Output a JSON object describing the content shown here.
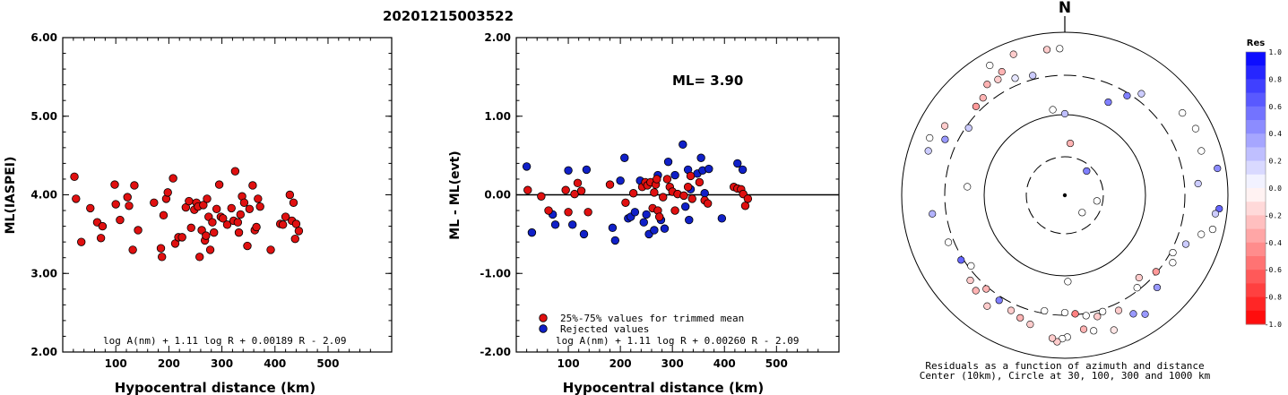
{
  "title": "20201215003522",
  "chart_data": [
    {
      "type": "scatter",
      "xlabel": "Hypocentral distance (km)",
      "ylabel": "ML(IASPEI)",
      "xlim": [
        0,
        620
      ],
      "ylim": [
        2.0,
        6.0
      ],
      "xticks": [
        "100",
        "200",
        "300",
        "400",
        "500"
      ],
      "yticks": [
        "2.00",
        "3.00",
        "4.00",
        "5.00",
        "6.00"
      ],
      "formula": "log A(nm) + 1.11 log R + 0.00189 R - 2.09",
      "marker_color": "#e01010",
      "points": [
        [
          22,
          4.23
        ],
        [
          25,
          3.95
        ],
        [
          35,
          3.4
        ],
        [
          52,
          3.83
        ],
        [
          65,
          3.65
        ],
        [
          72,
          3.45
        ],
        [
          75,
          3.6
        ],
        [
          98,
          4.13
        ],
        [
          100,
          3.88
        ],
        [
          108,
          3.68
        ],
        [
          122,
          3.97
        ],
        [
          125,
          3.86
        ],
        [
          132,
          3.3
        ],
        [
          135,
          4.12
        ],
        [
          142,
          3.55
        ],
        [
          172,
          3.9
        ],
        [
          185,
          3.32
        ],
        [
          187,
          3.21
        ],
        [
          190,
          3.74
        ],
        [
          195,
          3.95
        ],
        [
          198,
          4.03
        ],
        [
          208,
          4.21
        ],
        [
          212,
          3.38
        ],
        [
          218,
          3.46
        ],
        [
          225,
          3.46
        ],
        [
          232,
          3.84
        ],
        [
          238,
          3.92
        ],
        [
          242,
          3.58
        ],
        [
          248,
          3.81
        ],
        [
          252,
          3.9
        ],
        [
          255,
          3.85
        ],
        [
          258,
          3.21
        ],
        [
          262,
          3.55
        ],
        [
          265,
          3.87
        ],
        [
          268,
          3.42
        ],
        [
          270,
          3.48
        ],
        [
          272,
          3.95
        ],
        [
          275,
          3.72
        ],
        [
          278,
          3.3
        ],
        [
          282,
          3.65
        ],
        [
          285,
          3.52
        ],
        [
          290,
          3.82
        ],
        [
          295,
          4.13
        ],
        [
          298,
          3.72
        ],
        [
          302,
          3.7
        ],
        [
          310,
          3.62
        ],
        [
          318,
          3.83
        ],
        [
          322,
          3.67
        ],
        [
          325,
          4.3
        ],
        [
          330,
          3.65
        ],
        [
          332,
          3.52
        ],
        [
          335,
          3.75
        ],
        [
          338,
          3.98
        ],
        [
          342,
          3.9
        ],
        [
          348,
          3.35
        ],
        [
          352,
          3.82
        ],
        [
          358,
          4.12
        ],
        [
          362,
          3.55
        ],
        [
          365,
          3.59
        ],
        [
          368,
          3.95
        ],
        [
          372,
          3.85
        ],
        [
          392,
          3.3
        ],
        [
          410,
          3.63
        ],
        [
          415,
          3.62
        ],
        [
          420,
          3.72
        ],
        [
          428,
          4.0
        ],
        [
          432,
          3.67
        ],
        [
          435,
          3.9
        ],
        [
          438,
          3.44
        ],
        [
          440,
          3.63
        ],
        [
          445,
          3.54
        ]
      ]
    },
    {
      "type": "scatter",
      "xlabel": "Hypocentral distance (km)",
      "ylabel": "ML - ML(evt)",
      "xlim": [
        0,
        620
      ],
      "ylim": [
        -2.0,
        2.0
      ],
      "xticks": [
        "100",
        "200",
        "300",
        "400",
        "500"
      ],
      "yticks": [
        "-2.00",
        "-1.00",
        "0.00",
        "1.00",
        "2.00"
      ],
      "annotation": "ML= 3.90",
      "formula": "log A(nm) + 1.11 log R + 0.00260 R - 2.09",
      "legend": [
        "25%-75% values for trimmed mean",
        "Rejected values"
      ],
      "trimmed_color": "#e01010",
      "rejected_color": "#1020c8",
      "trimmed": [
        [
          22,
          0.06
        ],
        [
          48,
          -0.02
        ],
        [
          62,
          -0.2
        ],
        [
          95,
          0.06
        ],
        [
          100,
          -0.22
        ],
        [
          112,
          0.01
        ],
        [
          118,
          0.15
        ],
        [
          125,
          0.05
        ],
        [
          138,
          -0.22
        ],
        [
          180,
          0.13
        ],
        [
          210,
          -0.1
        ],
        [
          225,
          0.02
        ],
        [
          242,
          0.1
        ],
        [
          248,
          0.16
        ],
        [
          252,
          0.12
        ],
        [
          258,
          0.16
        ],
        [
          262,
          -0.17
        ],
        [
          265,
          0.03
        ],
        [
          268,
          0.13
        ],
        [
          270,
          0.2
        ],
        [
          272,
          -0.2
        ],
        [
          275,
          -0.28
        ],
        [
          282,
          -0.03
        ],
        [
          290,
          0.2
        ],
        [
          295,
          0.1
        ],
        [
          300,
          0.04
        ],
        [
          305,
          -0.2
        ],
        [
          310,
          0.01
        ],
        [
          322,
          -0.01
        ],
        [
          330,
          0.1
        ],
        [
          335,
          0.24
        ],
        [
          338,
          -0.05
        ],
        [
          352,
          0.16
        ],
        [
          362,
          -0.07
        ],
        [
          368,
          -0.11
        ],
        [
          418,
          0.1
        ],
        [
          425,
          0.08
        ],
        [
          432,
          0.07
        ],
        [
          436,
          0.01
        ],
        [
          440,
          -0.14
        ],
        [
          445,
          -0.05
        ]
      ],
      "rejected": [
        [
          20,
          0.36
        ],
        [
          30,
          -0.48
        ],
        [
          70,
          -0.25
        ],
        [
          75,
          -0.38
        ],
        [
          100,
          0.31
        ],
        [
          108,
          -0.38
        ],
        [
          130,
          -0.5
        ],
        [
          135,
          0.32
        ],
        [
          185,
          -0.42
        ],
        [
          190,
          -0.58
        ],
        [
          200,
          0.18
        ],
        [
          208,
          0.47
        ],
        [
          215,
          -0.3
        ],
        [
          220,
          -0.28
        ],
        [
          228,
          -0.22
        ],
        [
          238,
          0.18
        ],
        [
          245,
          -0.35
        ],
        [
          250,
          -0.25
        ],
        [
          255,
          -0.5
        ],
        [
          265,
          -0.45
        ],
        [
          272,
          0.25
        ],
        [
          278,
          -0.32
        ],
        [
          285,
          -0.43
        ],
        [
          292,
          0.42
        ],
        [
          305,
          0.25
        ],
        [
          320,
          0.64
        ],
        [
          325,
          -0.15
        ],
        [
          330,
          0.32
        ],
        [
          332,
          -0.32
        ],
        [
          335,
          0.07
        ],
        [
          348,
          0.27
        ],
        [
          355,
          0.47
        ],
        [
          358,
          0.31
        ],
        [
          362,
          0.02
        ],
        [
          370,
          0.33
        ],
        [
          395,
          -0.3
        ],
        [
          425,
          0.4
        ],
        [
          435,
          0.32
        ]
      ]
    },
    {
      "type": "polar_scatter",
      "north_label": "N",
      "caption_line1": "Residuals as a function of azimuth and distance",
      "caption_line2": "Center (10km), Circle at 30, 100, 300 and 1000 km",
      "colorbar_title": "Res",
      "colorbar_ticks": [
        "1.0",
        "0.8",
        "0.6",
        "0.4",
        "0.2",
        "0.0",
        "-0.2",
        "-0.4",
        "-0.6",
        "-0.8",
        "-1.0"
      ],
      "rings_km": [
        10,
        30,
        100,
        300,
        1000
      ],
      "points": [
        [
          0,
          0.5,
          0.25
        ],
        [
          25,
          0.63,
          0.5
        ],
        [
          37,
          0.78,
          0.2
        ],
        [
          55,
          0.88,
          0.0
        ],
        [
          63,
          0.9,
          0.0
        ],
        [
          72,
          0.88,
          0.0
        ],
        [
          80,
          0.95,
          0.45
        ],
        [
          85,
          0.82,
          0.2
        ],
        [
          95,
          0.95,
          0.6
        ],
        [
          97,
          0.93,
          0.2
        ],
        [
          103,
          0.93,
          0.0
        ],
        [
          106,
          0.87,
          0.0
        ],
        [
          112,
          0.8,
          0.2
        ],
        [
          118,
          0.75,
          0.0
        ],
        [
          122,
          0.78,
          0.0
        ],
        [
          130,
          0.73,
          -0.4
        ],
        [
          138,
          0.68,
          -0.2
        ],
        [
          135,
          0.8,
          0.4
        ],
        [
          142,
          0.72,
          0.0
        ],
        [
          146,
          0.88,
          0.4
        ],
        [
          150,
          0.84,
          0.4
        ],
        [
          155,
          0.78,
          -0.2
        ],
        [
          160,
          0.88,
          -0.1
        ],
        [
          162,
          0.75,
          0.0
        ],
        [
          165,
          0.77,
          -0.2
        ],
        [
          168,
          0.85,
          0.0
        ],
        [
          170,
          0.75,
          0.0
        ],
        [
          172,
          0.83,
          -0.3
        ],
        [
          175,
          0.73,
          -0.5
        ],
        [
          179,
          0.87,
          0.0
        ],
        [
          181,
          0.88,
          0.0
        ],
        [
          183,
          0.9,
          -0.2
        ],
        [
          185,
          0.88,
          -0.2
        ],
        [
          190,
          0.72,
          0.0
        ],
        [
          195,
          0.82,
          -0.2
        ],
        [
          200,
          0.8,
          -0.3
        ],
        [
          205,
          0.78,
          -0.2
        ],
        [
          212,
          0.76,
          0.5
        ],
        [
          215,
          0.83,
          -0.2
        ],
        [
          220,
          0.75,
          -0.3
        ],
        [
          223,
          0.8,
          -0.3
        ],
        [
          228,
          0.78,
          -0.2
        ],
        [
          233,
          0.72,
          0.0
        ],
        [
          238,
          0.75,
          0.6
        ],
        [
          248,
          0.77,
          0.0
        ],
        [
          262,
          0.82,
          0.3
        ],
        [
          275,
          0.6,
          0.0
        ],
        [
          288,
          0.88,
          0.2
        ],
        [
          293,
          0.9,
          0.0
        ],
        [
          295,
          0.81,
          0.4
        ],
        [
          300,
          0.85,
          -0.2
        ],
        [
          305,
          0.72,
          0.2
        ],
        [
          315,
          0.77,
          -0.4
        ],
        [
          320,
          0.78,
          -0.3
        ],
        [
          325,
          0.83,
          -0.3
        ],
        [
          330,
          0.82,
          -0.2
        ],
        [
          330,
          0.92,
          0.0
        ],
        [
          333,
          0.85,
          -0.3
        ],
        [
          337,
          0.78,
          0.1
        ],
        [
          340,
          0.92,
          -0.2
        ],
        [
          345,
          0.76,
          0.2
        ],
        [
          352,
          0.53,
          0.0
        ],
        [
          353,
          0.9,
          -0.2
        ],
        [
          6,
          0.32,
          -0.3
        ],
        [
          32,
          0.72,
          0.5
        ],
        [
          42,
          0.2,
          0.5
        ],
        [
          100,
          0.2,
          0.0
        ],
        [
          135,
          0.15,
          0.0
        ],
        [
          178,
          0.53,
          0.0
        ],
        [
          180,
          0.72,
          0.0
        ],
        [
          358,
          0.9,
          0.0
        ]
      ]
    }
  ]
}
